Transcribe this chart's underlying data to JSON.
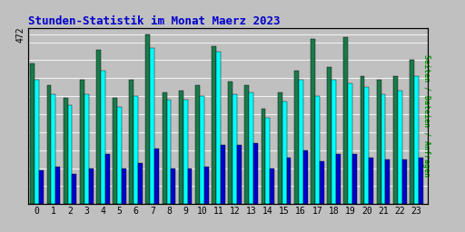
{
  "title": "Stunden-Statistik im Monat Maerz 2023",
  "ylabel": "Seiten / Dateien / Anfragen",
  "hours": [
    0,
    1,
    2,
    3,
    4,
    5,
    6,
    7,
    8,
    9,
    10,
    11,
    12,
    13,
    14,
    15,
    16,
    17,
    18,
    19,
    20,
    21,
    22,
    23
  ],
  "seiten": [
    390,
    330,
    295,
    345,
    430,
    295,
    345,
    472,
    310,
    315,
    330,
    440,
    340,
    330,
    265,
    310,
    370,
    460,
    380,
    465,
    355,
    345,
    355,
    400
  ],
  "dateien": [
    345,
    305,
    275,
    305,
    370,
    270,
    300,
    435,
    290,
    290,
    300,
    425,
    305,
    310,
    240,
    285,
    345,
    300,
    345,
    335,
    325,
    305,
    315,
    355
  ],
  "anfragen": [
    95,
    105,
    85,
    100,
    140,
    100,
    115,
    155,
    100,
    100,
    105,
    165,
    165,
    170,
    100,
    130,
    150,
    120,
    140,
    140,
    130,
    125,
    125,
    130
  ],
  "color_seiten": "#1A7A4A",
  "color_dateien": "#00FFFF",
  "color_anfragen": "#0000CC",
  "ylim_max": 490,
  "ytick_val": 472,
  "background_color": "#C0C0C0",
  "plot_bg": "#C0C0C0",
  "title_color": "#0000CC",
  "ylabel_color": "#009900",
  "bar_width": 0.27,
  "title_fontsize": 9,
  "ylabel_fontsize": 6
}
